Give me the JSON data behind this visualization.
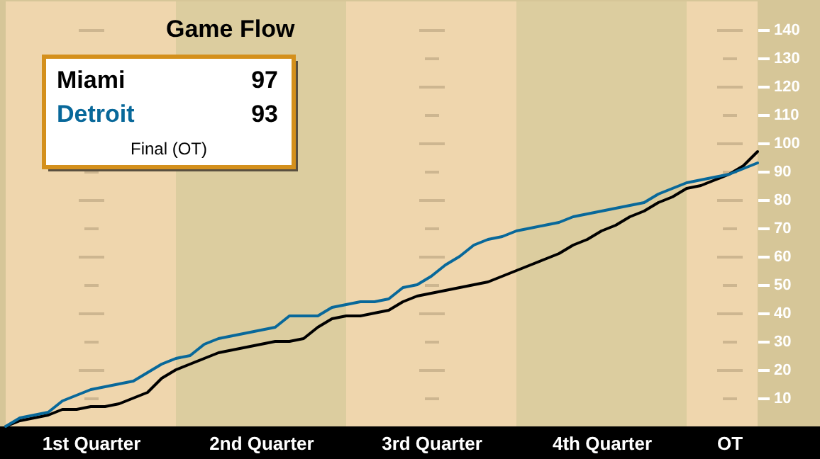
{
  "chart_data": {
    "type": "line",
    "title": "Game Flow",
    "annotations": [
      "97",
      "93",
      "Final (OT)"
    ],
    "categories": [
      null,
      null,
      null,
      null,
      null,
      null,
      "1st Quarter",
      null,
      null,
      null,
      null,
      null,
      null,
      null,
      null,
      null,
      null,
      null,
      "2nd Quarter",
      null,
      null,
      null,
      null,
      null,
      null,
      null,
      null,
      null,
      null,
      null,
      "3rd Quarter",
      null,
      null,
      null,
      null,
      null,
      null,
      null,
      null,
      null,
      null,
      null,
      "4th Quarter",
      null,
      null,
      null,
      null,
      null,
      null,
      null,
      null,
      "OT",
      null,
      null
    ],
    "ylim": [
      0,
      150
    ],
    "yticks": [
      10,
      20,
      30,
      40,
      50,
      60,
      70,
      80,
      90,
      100,
      110,
      120,
      130,
      140
    ],
    "grid": "y",
    "legend": "top left",
    "series": [
      {
        "name": "Miami",
        "color": "#000000",
        "values": [
          0,
          2,
          3,
          4,
          6,
          6,
          7,
          7,
          8,
          10,
          12,
          17,
          20,
          22,
          24,
          26,
          27,
          28,
          29,
          30,
          30,
          31,
          35,
          38,
          39,
          39,
          40,
          41,
          44,
          46,
          47,
          48,
          49,
          50,
          51,
          53,
          55,
          57,
          59,
          61,
          64,
          66,
          69,
          71,
          74,
          76,
          79,
          81,
          84,
          85,
          87,
          89,
          92,
          97
        ]
      },
      {
        "name": "Detroit",
        "color": "#08689a",
        "values": [
          0,
          3,
          4,
          5,
          9,
          11,
          13,
          14,
          15,
          16,
          19,
          22,
          24,
          25,
          29,
          31,
          32,
          33,
          34,
          35,
          39,
          39,
          39,
          42,
          43,
          44,
          44,
          45,
          49,
          50,
          53,
          57,
          60,
          64,
          66,
          67,
          69,
          70,
          71,
          72,
          74,
          75,
          76,
          77,
          78,
          79,
          82,
          84,
          86,
          87,
          88,
          89,
          91,
          93
        ]
      }
    ]
  }
}
